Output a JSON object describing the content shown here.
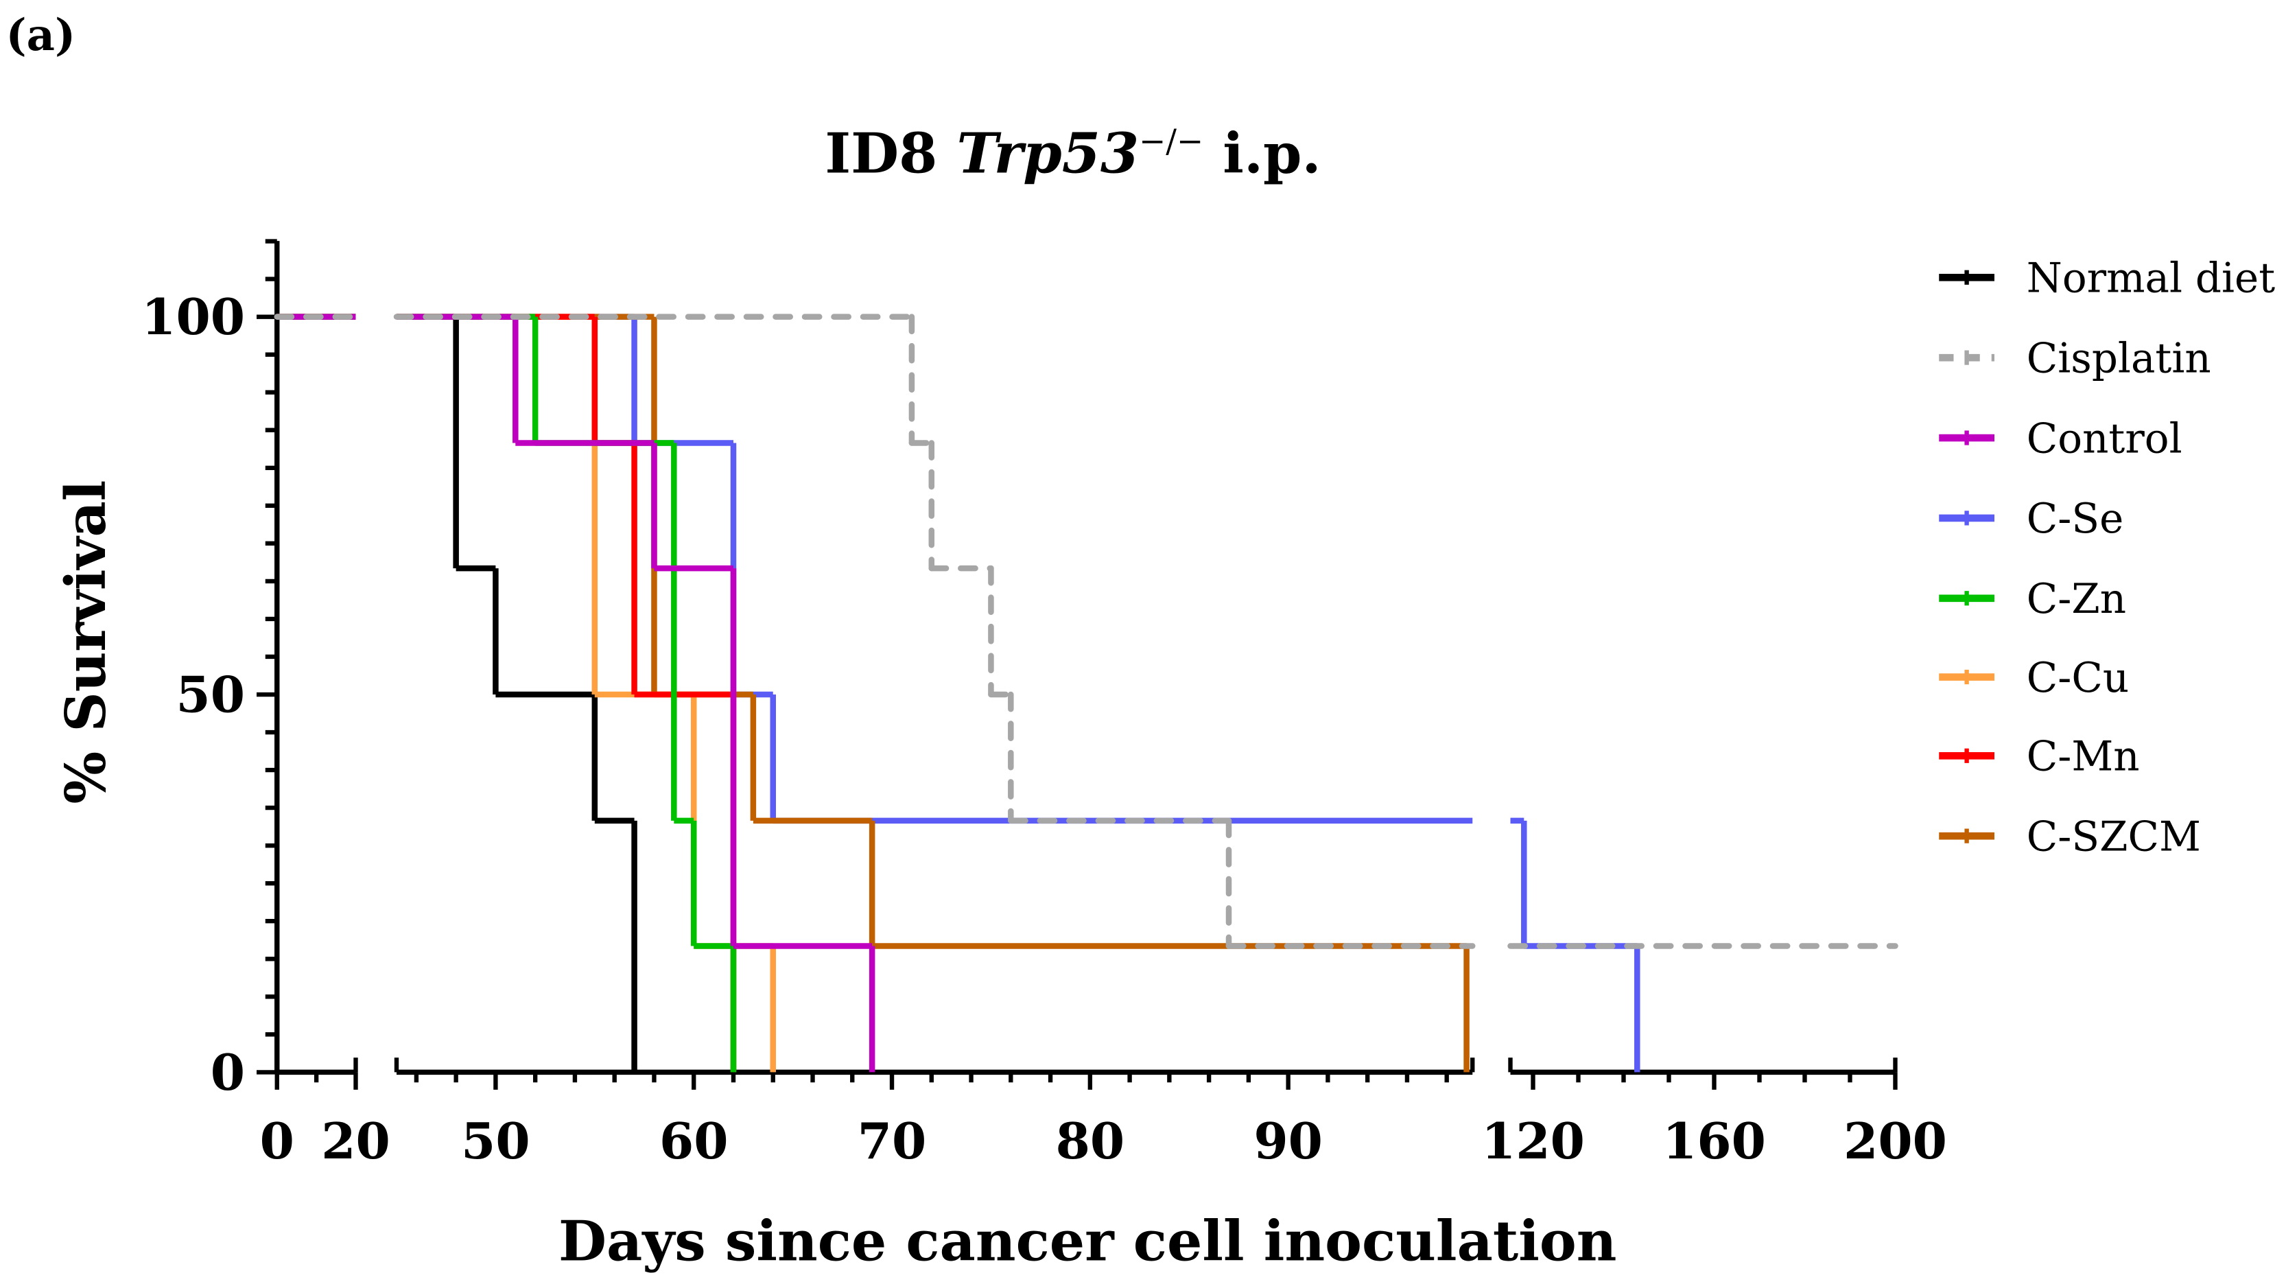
{
  "panel_label": "(a)",
  "chart_data": {
    "type": "line",
    "subtype": "kaplan-meier step",
    "title": {
      "prefix": "ID8 ",
      "gene": "Trp53",
      "superscript": "−/−",
      "suffix": " i.p."
    },
    "xlabel": "Days since cancer cell inoculation",
    "ylabel": "% Survival",
    "ylim": [
      0,
      110
    ],
    "y_ticks": [
      "0",
      "50",
      "100"
    ],
    "x_axis_segments": [
      {
        "range": [
          0,
          20
        ],
        "ticks": [
          0,
          20
        ],
        "minor_step": 10
      },
      {
        "range": [
          45,
          99.3
        ],
        "ticks": [
          50,
          60,
          70,
          80,
          90
        ],
        "minor_step": 2
      },
      {
        "range": [
          115,
          200
        ],
        "ticks": [
          120,
          160,
          200
        ],
        "minor_step": 10
      }
    ],
    "legend_position": "right",
    "series": [
      {
        "name": "Normal diet",
        "color": "#000000",
        "dashed": false,
        "steps": [
          [
            0,
            100
          ],
          [
            48,
            66.7
          ],
          [
            50,
            50
          ],
          [
            55,
            33.3
          ],
          [
            57,
            0
          ]
        ],
        "end": 57
      },
      {
        "name": "Cisplatin",
        "color": "#a6a6a6",
        "dashed": true,
        "steps": [
          [
            0,
            100
          ],
          [
            71,
            83.3
          ],
          [
            72,
            66.7
          ],
          [
            75,
            50
          ],
          [
            76,
            33.3
          ],
          [
            87,
            16.7
          ]
        ],
        "end": 200
      },
      {
        "name": "Control",
        "color": "#c000c0",
        "dashed": false,
        "steps": [
          [
            0,
            100
          ],
          [
            51,
            83.3
          ],
          [
            58,
            66.7
          ],
          [
            62,
            16.7
          ],
          [
            69,
            0
          ]
        ],
        "end": 69
      },
      {
        "name": "C-Se",
        "color": "#5b5bf5",
        "dashed": false,
        "steps": [
          [
            0,
            100
          ],
          [
            57,
            83.3
          ],
          [
            62,
            50
          ],
          [
            64,
            33.3
          ],
          [
            118,
            16.7
          ],
          [
            143,
            0
          ]
        ],
        "end": 143
      },
      {
        "name": "C-Zn",
        "color": "#00c000",
        "dashed": false,
        "steps": [
          [
            0,
            100
          ],
          [
            52,
            83.3
          ],
          [
            59,
            33.3
          ],
          [
            60,
            16.7
          ],
          [
            62,
            0
          ]
        ],
        "end": 62
      },
      {
        "name": "C-Cu",
        "color": "#ffa040",
        "dashed": false,
        "steps": [
          [
            0,
            100
          ],
          [
            55,
            50
          ],
          [
            60,
            16.7
          ],
          [
            64,
            0
          ]
        ],
        "end": 64
      },
      {
        "name": "C-Mn",
        "color": "#ff0000",
        "dashed": false,
        "steps": [
          [
            0,
            100
          ],
          [
            55,
            83.3
          ],
          [
            57,
            50
          ],
          [
            62,
            0
          ]
        ],
        "end": 62
      },
      {
        "name": "C-SZCM",
        "color": "#c06000",
        "dashed": false,
        "steps": [
          [
            0,
            100
          ],
          [
            58,
            50
          ],
          [
            63,
            33.3
          ],
          [
            69,
            16.7
          ],
          [
            99,
            0
          ]
        ],
        "end": 99
      }
    ],
    "draw_order": [
      "Normal diet",
      "C-Se",
      "C-SZCM",
      "C-Cu",
      "C-Mn",
      "C-Zn",
      "Control",
      "Cisplatin"
    ]
  }
}
